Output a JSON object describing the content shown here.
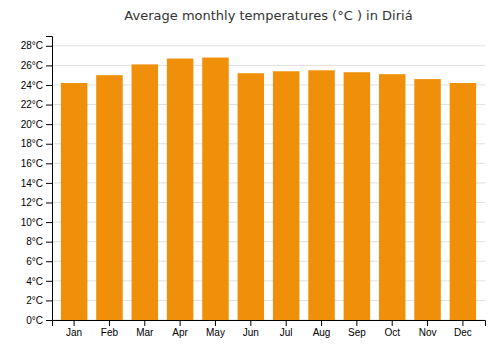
{
  "chart_data": {
    "type": "bar",
    "title": "Average monthly temperatures (°C ) in Diriá",
    "categories": [
      "Jan",
      "Feb",
      "Mar",
      "Apr",
      "May",
      "Jun",
      "Jul",
      "Aug",
      "Sep",
      "Oct",
      "Nov",
      "Dec"
    ],
    "values": [
      24.2,
      25.0,
      26.1,
      26.7,
      26.8,
      25.2,
      25.4,
      25.5,
      25.3,
      25.1,
      24.6,
      24.2
    ],
    "color": "#F0900A",
    "ylim": [
      0,
      29
    ],
    "yticks": [
      {
        "value": 0,
        "label": "0°C"
      },
      {
        "value": 2,
        "label": "2°C"
      },
      {
        "value": 4,
        "label": "4°C"
      },
      {
        "value": 6,
        "label": "6°C"
      },
      {
        "value": 8,
        "label": "8°C"
      },
      {
        "value": 10,
        "label": "10°C"
      },
      {
        "value": 12,
        "label": "12°C"
      },
      {
        "value": 14,
        "label": "14°C"
      },
      {
        "value": 16,
        "label": "16°C"
      },
      {
        "value": 18,
        "label": "18°C"
      },
      {
        "value": 20,
        "label": "20°C"
      },
      {
        "value": 22,
        "label": "22°C"
      },
      {
        "value": 24,
        "label": "24°C"
      },
      {
        "value": 26,
        "label": "26°C"
      },
      {
        "value": 28,
        "label": "28°C"
      }
    ],
    "grid": true
  }
}
